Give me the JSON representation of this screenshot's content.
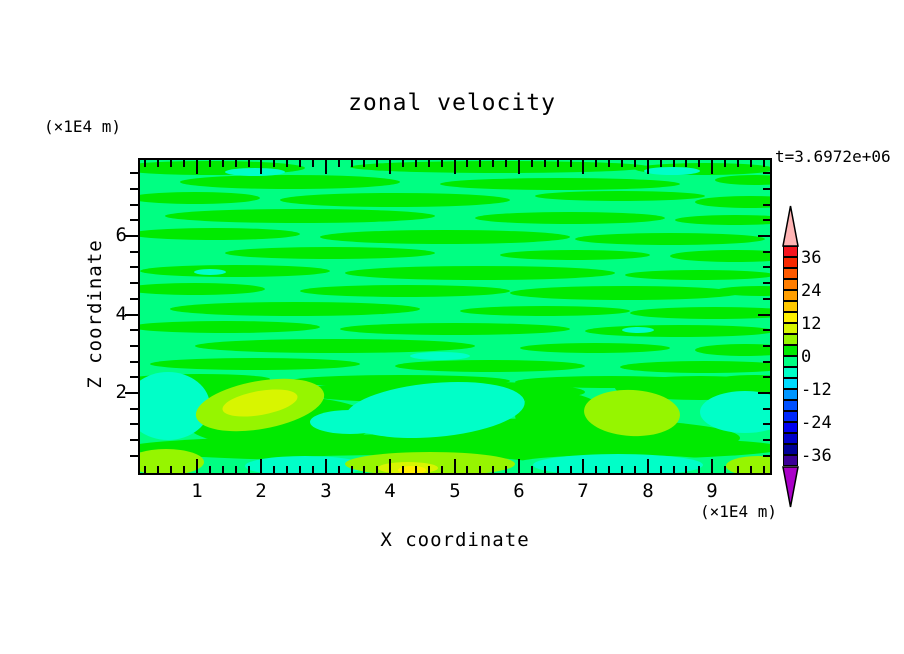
{
  "title": "zonal velocity",
  "time_label": "t=3.6972e+06",
  "y_axis": {
    "unit": "(×1E4 m)",
    "label": "Z coordinate",
    "ticks": [
      "6",
      "4",
      "2"
    ]
  },
  "x_axis": {
    "unit": "(×1E4 m)",
    "label": "X coordinate",
    "ticks": [
      "1",
      "2",
      "3",
      "4",
      "5",
      "6",
      "7",
      "8",
      "9"
    ]
  },
  "colorbar": {
    "labels": [
      "36",
      "24",
      "12",
      "0",
      "-12",
      "-24",
      "-36"
    ],
    "over_color": "#ffb4b4",
    "under_color": "#aa00c8",
    "segments": [
      "#f5141e",
      "#f82800",
      "#ff5a00",
      "#ff7d00",
      "#ff9e00",
      "#ffc800",
      "#fff000",
      "#d8f500",
      "#96f500",
      "#00ea00",
      "#00ff82",
      "#00ffc8",
      "#00dcff",
      "#0096ff",
      "#0050ff",
      "#0028fa",
      "#0000f0",
      "#0000c8",
      "#000096",
      "#3c0096"
    ]
  },
  "palette": {
    "band_0_to_4": "#00ea00",
    "band_m4_to_0": "#00ff82",
    "band_m8_to_m4": "#00ffc8",
    "band_4_to_8": "#96f500",
    "band_8_to_12": "#d8f500",
    "band_12_to_16": "#fff000"
  },
  "chart_data": {
    "type": "heatmap",
    "subtype": "filled_contour",
    "title": "zonal velocity",
    "xlabel": "X coordinate",
    "ylabel": "Z coordinate",
    "x_unit": "(×1E4 m)",
    "y_unit": "(×1E4 m)",
    "time_annotation": "t=3.6972e+06",
    "x_range": [
      0.1,
      9.9
    ],
    "y_range": [
      0.0,
      7.9
    ],
    "x_ticks": [
      1,
      2,
      3,
      4,
      5,
      6,
      7,
      8,
      9
    ],
    "y_ticks": [
      2,
      4,
      6
    ],
    "contour_interval": 4,
    "levels": [
      -40,
      -36,
      -32,
      -28,
      -24,
      -20,
      -16,
      -12,
      -8,
      -4,
      0,
      4,
      8,
      12,
      16,
      20,
      24,
      28,
      32,
      36,
      40
    ],
    "colorbar_labels": [
      36,
      24,
      12,
      0,
      -12,
      -24,
      -36
    ],
    "colorbar_range": [
      -40,
      40
    ],
    "legend_position": "right",
    "grid": false,
    "field_description": "Zonal velocity stays within -8..8 over most of the domain: the upper interior (z>2) is filled with alternating wavy horizontal streaks of the 0..4 band (green) and -4..0 band (spring green) with a few thin -8..-4 filaments; below z≈2 larger anomalies appear near the bottom boundary.",
    "approximate_band_values_note": "dominant contour-band midpoint per cell, rows z=7.5 down to z=0.5, columns x=0.5..9.5",
    "approximate_band_values": [
      [
        2,
        -2,
        2,
        -2,
        2,
        -2,
        2,
        2,
        -2,
        2
      ],
      [
        -2,
        2,
        -2,
        2,
        2,
        -2,
        2,
        -2,
        2,
        -2
      ],
      [
        2,
        -2,
        2,
        2,
        -2,
        2,
        -2,
        2,
        -2,
        2
      ],
      [
        -2,
        2,
        -2,
        2,
        2,
        -2,
        2,
        2,
        -2,
        -2
      ],
      [
        2,
        2,
        -2,
        2,
        -2,
        2,
        -2,
        -2,
        2,
        -2
      ],
      [
        -2,
        2,
        2,
        -2,
        2,
        -2,
        2,
        -2,
        2,
        2
      ],
      [
        -6,
        6,
        2,
        -2,
        -6,
        -6,
        2,
        6,
        2,
        -6
      ],
      [
        6,
        -2,
        2,
        6,
        -6,
        -6,
        -6,
        -2,
        -6,
        6
      ]
    ],
    "features": [
      {
        "x": 0.3,
        "z": 1.3,
        "band": "-8..-4",
        "note": "aquamarine depression at left edge"
      },
      {
        "x": 1.8,
        "z": 1.5,
        "band": "4..8",
        "note": "chartreuse maximum with 8..12 core"
      },
      {
        "x": 4.7,
        "z": 1.4,
        "band": "-8..-4",
        "note": "large aquamarine minimum"
      },
      {
        "x": 7.0,
        "z": 1.5,
        "band": "4..8",
        "note": "chartreuse maximum"
      },
      {
        "x": 9.6,
        "z": 1.4,
        "band": "-8..-4",
        "note": "aquamarine patch at right edge"
      },
      {
        "x": 4.3,
        "z": 0.2,
        "band": "8..16",
        "note": "yellow core in chartreuse band along bottom edge"
      },
      {
        "x": 7.4,
        "z": 0.3,
        "band": "-8..-4",
        "note": "aquamarine band along bottom edge"
      },
      {
        "x": 0.2,
        "z": 0.3,
        "band": "4..8",
        "note": "chartreuse spot at bottom-left corner"
      },
      {
        "x": 9.8,
        "z": 0.2,
        "band": "4..8",
        "note": "chartreuse spot at bottom-right corner"
      }
    ]
  }
}
